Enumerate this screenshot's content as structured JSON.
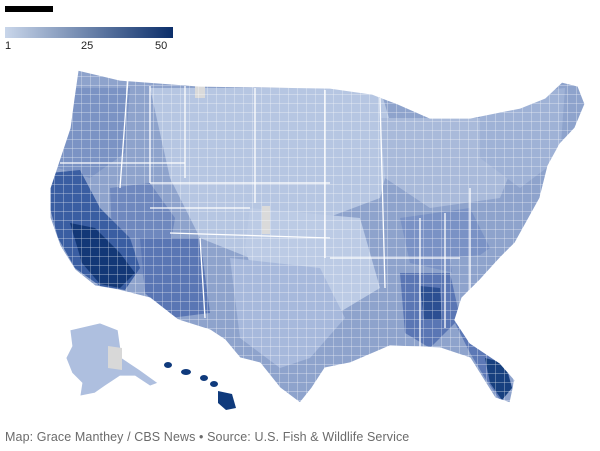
{
  "header": {
    "bar_color": "#000000"
  },
  "legend": {
    "min_label": "1",
    "mid_label": "25",
    "max_label": "50",
    "color_low": "#c9d6ea",
    "color_high": "#0b2e6a"
  },
  "map": {
    "type": "choropleth",
    "region": "United States counties",
    "scale": {
      "min": 1,
      "mid": 25,
      "max": 50
    },
    "no_data_color": "#dadada",
    "border_color": "#ffffff",
    "high_value_areas": [
      "Southern California",
      "Hawaii",
      "South Florida",
      "Central Alabama",
      "Arizona",
      "Coastal Northern California"
    ]
  },
  "credit": "Map: Grace Manthey / CBS News • Source: U.S. Fish & Wildlife Service"
}
